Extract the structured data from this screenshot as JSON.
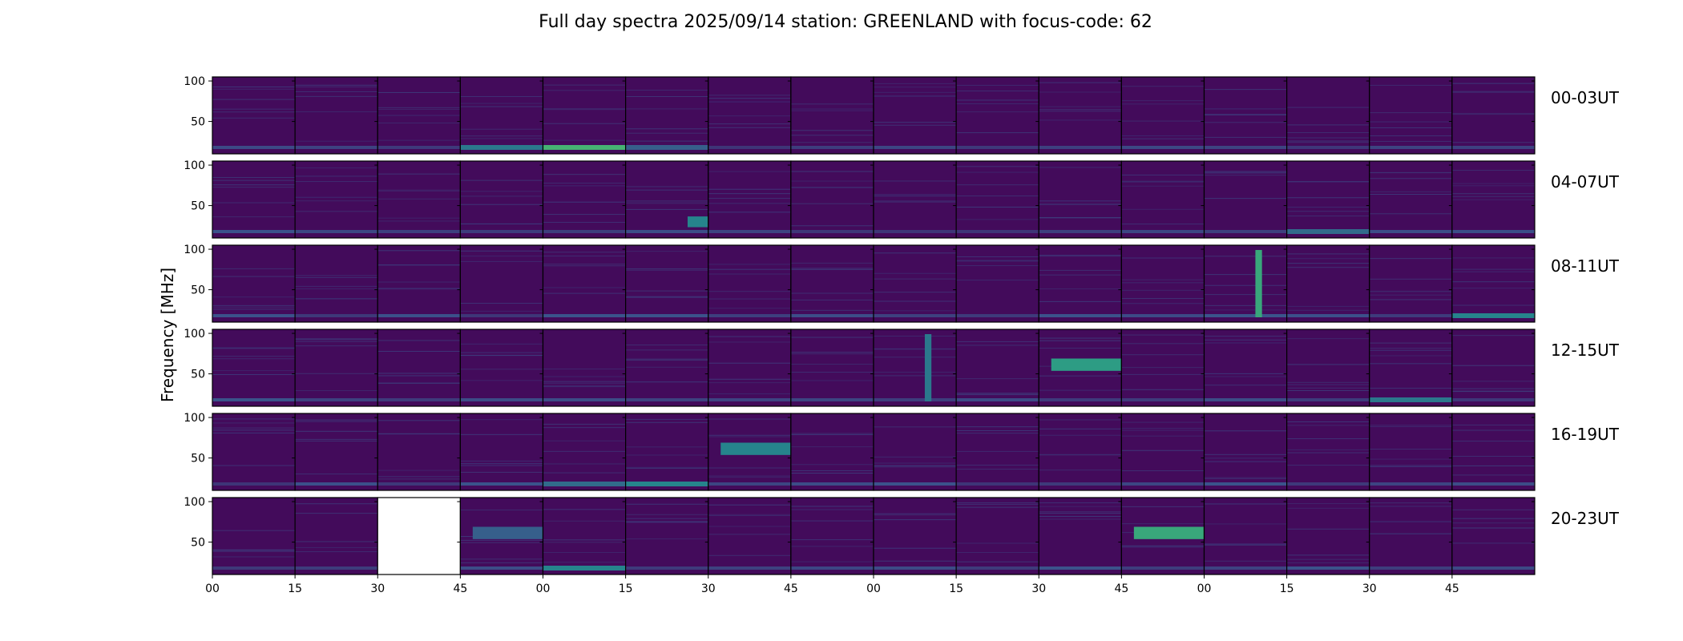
{
  "chart_data": {
    "type": "heatmap",
    "title": "Full day spectra 2025/09/14 station: GREENLAND with focus-code: 62",
    "ylabel": "Frequency [MHz]",
    "xlabel": "",
    "ylim": [
      10,
      105
    ],
    "y_ticks": [
      "50",
      "100"
    ],
    "x_ticks": [
      "00",
      "15",
      "30",
      "45",
      "00",
      "15",
      "30",
      "45",
      "00",
      "15",
      "30",
      "45",
      "00",
      "15",
      "30",
      "45"
    ],
    "colormap": "viridis",
    "panels_per_row": 16,
    "rows": [
      {
        "label": "00-03UT",
        "missing": [],
        "features": [
          {
            "panel": 4,
            "kind": "low",
            "level": 0.65
          },
          {
            "panel": 3,
            "kind": "low",
            "level": 0.4
          },
          {
            "panel": 5,
            "kind": "low",
            "level": 0.3
          }
        ]
      },
      {
        "label": "04-07UT",
        "missing": [],
        "features": [
          {
            "panel": 5,
            "kind": "block",
            "level": 0.45
          },
          {
            "panel": 13,
            "kind": "low",
            "level": 0.35
          }
        ]
      },
      {
        "label": "08-11UT",
        "missing": [],
        "features": [
          {
            "panel": 12,
            "kind": "vband",
            "level": 0.6
          },
          {
            "panel": 15,
            "kind": "low",
            "level": 0.45
          }
        ]
      },
      {
        "label": "12-15UT",
        "missing": [],
        "features": [
          {
            "panel": 10,
            "kind": "band",
            "level": 0.55
          },
          {
            "panel": 8,
            "kind": "vband",
            "level": 0.4
          },
          {
            "panel": 14,
            "kind": "low",
            "level": 0.4
          }
        ]
      },
      {
        "label": "16-19UT",
        "missing": [],
        "features": [
          {
            "panel": 6,
            "kind": "band",
            "level": 0.45
          },
          {
            "panel": 5,
            "kind": "low",
            "level": 0.45
          },
          {
            "panel": 4,
            "kind": "low",
            "level": 0.35
          }
        ]
      },
      {
        "label": "20-23UT",
        "missing": [
          2
        ],
        "features": [
          {
            "panel": 11,
            "kind": "band",
            "level": 0.6
          },
          {
            "panel": 4,
            "kind": "low",
            "level": 0.45
          },
          {
            "panel": 3,
            "kind": "band",
            "level": 0.3
          }
        ]
      }
    ]
  }
}
